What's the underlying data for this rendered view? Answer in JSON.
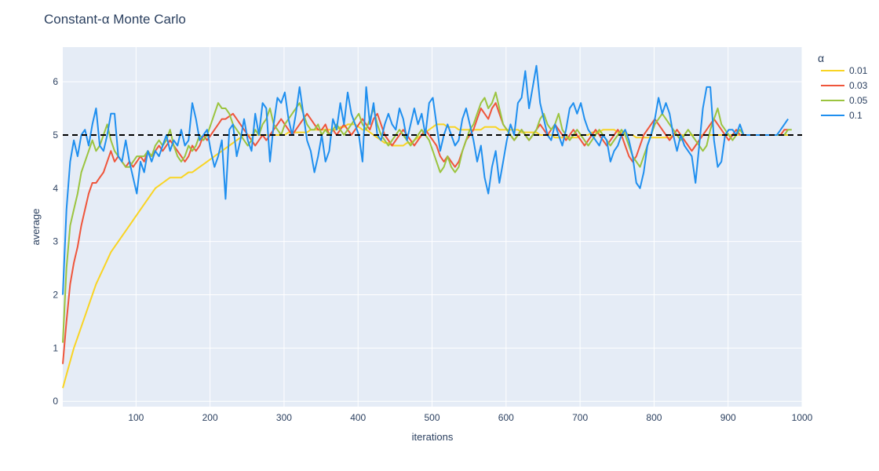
{
  "chart_data": {
    "type": "line",
    "title": "Constant-α Monte Carlo",
    "xlabel": "iterations",
    "ylabel": "average",
    "xlim": [
      1,
      1000
    ],
    "ylim": [
      -0.1,
      6.65
    ],
    "xticks": [
      100,
      200,
      300,
      400,
      500,
      600,
      700,
      800,
      900,
      1000
    ],
    "yticks": [
      0,
      1,
      2,
      3,
      4,
      5,
      6
    ],
    "grid": true,
    "legend": {
      "title": "α",
      "placement": "right"
    },
    "reference_line": {
      "y": 5,
      "style": "dashed",
      "color": "#000000"
    },
    "x_step": 5,
    "series": [
      {
        "name": "0.01",
        "color": "#f9d423",
        "values": [
          0.25,
          0.5,
          0.75,
          1.0,
          1.2,
          1.4,
          1.6,
          1.8,
          2.0,
          2.2,
          2.35,
          2.5,
          2.65,
          2.8,
          2.9,
          3.0,
          3.1,
          3.2,
          3.3,
          3.4,
          3.5,
          3.6,
          3.7,
          3.8,
          3.9,
          4.0,
          4.05,
          4.1,
          4.15,
          4.2,
          4.2,
          4.2,
          4.2,
          4.25,
          4.3,
          4.3,
          4.35,
          4.4,
          4.45,
          4.5,
          4.55,
          4.6,
          4.65,
          4.7,
          4.75,
          4.8,
          4.85,
          4.9,
          4.95,
          5.0,
          5.0,
          5.0,
          5.0,
          5.0,
          5.0,
          5.0,
          5.0,
          5.0,
          5.0,
          5.0,
          5.0,
          5.05,
          5.05,
          5.05,
          5.05,
          5.05,
          5.05,
          5.1,
          5.1,
          5.1,
          5.1,
          5.1,
          5.1,
          5.1,
          5.1,
          5.15,
          5.15,
          5.2,
          5.2,
          5.2,
          5.15,
          5.1,
          5.1,
          5.05,
          5.0,
          4.95,
          4.9,
          4.85,
          4.85,
          4.8,
          4.8,
          4.8,
          4.8,
          4.85,
          4.85,
          4.9,
          4.95,
          5.0,
          5.05,
          5.1,
          5.15,
          5.2,
          5.2,
          5.2,
          5.15,
          5.15,
          5.15,
          5.1,
          5.1,
          5.1,
          5.1,
          5.1,
          5.1,
          5.1,
          5.15,
          5.15,
          5.15,
          5.15,
          5.1,
          5.1,
          5.1,
          5.1,
          5.1,
          5.1,
          5.05,
          5.05,
          5.05,
          5.05,
          5.05,
          5.0,
          5.0,
          5.0,
          5.0,
          4.95,
          4.95,
          4.95,
          4.95,
          4.95,
          4.95,
          4.95,
          5.0,
          5.0,
          5.0,
          5.05,
          5.05,
          5.05,
          5.1,
          5.1,
          5.1,
          5.1,
          5.05,
          5.05,
          5.05,
          5.0,
          5.0,
          4.95,
          4.95,
          4.95,
          4.95,
          4.95,
          4.95,
          4.95,
          4.95,
          4.95,
          4.95,
          5.0,
          5.0,
          5.0,
          5.0,
          5.0,
          5.0,
          5.0,
          5.0,
          5.0,
          5.0,
          5.0,
          5.0,
          5.0,
          5.0,
          5.0,
          5.0,
          5.0,
          5.0,
          5.0,
          5.0,
          5.0,
          5.0,
          5.0,
          5.0,
          5.0,
          5.0,
          5.0,
          5.0,
          5.0,
          5.0,
          5.0,
          5.0,
          5.0
        ]
      },
      {
        "name": "0.03",
        "color": "#ef553b",
        "values": [
          0.7,
          1.5,
          2.2,
          2.6,
          2.9,
          3.3,
          3.6,
          3.9,
          4.1,
          4.1,
          4.2,
          4.3,
          4.5,
          4.7,
          4.5,
          4.6,
          4.5,
          4.4,
          4.5,
          4.4,
          4.5,
          4.6,
          4.5,
          4.7,
          4.6,
          4.7,
          4.8,
          4.7,
          4.8,
          4.9,
          4.8,
          4.7,
          4.6,
          4.5,
          4.6,
          4.8,
          4.7,
          4.8,
          5.0,
          4.9,
          5.0,
          5.1,
          5.2,
          5.3,
          5.3,
          5.35,
          5.4,
          5.3,
          5.2,
          5.1,
          5.0,
          4.9,
          4.8,
          4.9,
          5.0,
          4.9,
          5.0,
          5.1,
          5.2,
          5.3,
          5.2,
          5.1,
          5.0,
          5.1,
          5.2,
          5.3,
          5.4,
          5.3,
          5.2,
          5.1,
          5.1,
          5.2,
          5.0,
          5.1,
          5.0,
          5.1,
          5.2,
          5.1,
          5.0,
          5.1,
          5.2,
          5.3,
          5.2,
          5.1,
          5.3,
          5.4,
          5.2,
          5.0,
          4.9,
          4.8,
          4.9,
          5.0,
          5.1,
          5.0,
          4.9,
          4.8,
          4.9,
          5.0,
          5.1,
          5.0,
          4.9,
          4.8,
          4.6,
          4.5,
          4.6,
          4.5,
          4.4,
          4.5,
          4.7,
          4.9,
          5.0,
          5.1,
          5.3,
          5.5,
          5.4,
          5.3,
          5.5,
          5.6,
          5.4,
          5.2,
          5.1,
          5.0,
          4.9,
          5.0,
          5.1,
          5.0,
          4.9,
          5.0,
          5.1,
          5.2,
          5.1,
          5.0,
          5.1,
          5.2,
          5.1,
          5.0,
          4.9,
          5.0,
          5.1,
          5.0,
          4.9,
          4.8,
          4.9,
          5.0,
          5.1,
          5.0,
          4.9,
          4.8,
          4.9,
          5.0,
          5.1,
          5.0,
          4.8,
          4.6,
          4.5,
          4.6,
          4.8,
          5.0,
          5.1,
          5.2,
          5.3,
          5.2,
          5.1,
          5.0,
          4.9,
          5.0,
          5.1,
          5.0,
          4.9,
          4.8,
          4.7,
          4.8,
          4.9,
          5.0,
          5.1,
          5.2,
          5.3,
          5.2,
          5.1,
          5.0,
          4.9,
          5.0,
          5.1,
          5.0,
          5.0,
          5.0,
          5.0,
          5.0,
          5.0,
          5.0,
          5.0,
          5.0,
          5.0,
          5.0,
          5.0,
          5.1,
          5.1
        ]
      },
      {
        "name": "0.05",
        "color": "#9bc43f",
        "values": [
          1.1,
          2.5,
          3.3,
          3.6,
          3.9,
          4.3,
          4.5,
          4.7,
          4.9,
          4.7,
          4.8,
          5.0,
          5.2,
          4.9,
          4.7,
          4.6,
          4.5,
          4.4,
          4.4,
          4.5,
          4.6,
          4.6,
          4.6,
          4.7,
          4.6,
          4.8,
          4.9,
          4.8,
          4.9,
          5.1,
          4.8,
          4.6,
          4.5,
          4.6,
          4.8,
          4.7,
          4.8,
          5.0,
          4.9,
          5.0,
          5.2,
          5.4,
          5.6,
          5.5,
          5.5,
          5.4,
          5.2,
          5.1,
          5.0,
          4.9,
          4.8,
          4.9,
          5.1,
          5.0,
          5.2,
          5.3,
          5.5,
          5.2,
          5.1,
          5.0,
          5.2,
          5.3,
          5.4,
          5.5,
          5.6,
          5.4,
          5.2,
          5.1,
          5.1,
          5.2,
          5.0,
          5.1,
          5.0,
          5.1,
          5.2,
          5.1,
          5.0,
          5.1,
          5.2,
          5.3,
          5.4,
          5.2,
          5.1,
          5.3,
          5.5,
          5.2,
          5.0,
          4.9,
          4.8,
          4.9,
          5.0,
          5.1,
          5.0,
          4.9,
          4.8,
          4.9,
          5.0,
          5.1,
          5.0,
          4.9,
          4.7,
          4.5,
          4.3,
          4.4,
          4.6,
          4.4,
          4.3,
          4.4,
          4.7,
          4.9,
          5.1,
          5.2,
          5.4,
          5.6,
          5.7,
          5.5,
          5.6,
          5.8,
          5.5,
          5.2,
          5.1,
          5.0,
          4.9,
          5.0,
          5.1,
          5.0,
          4.9,
          5.0,
          5.1,
          5.3,
          5.4,
          5.2,
          5.1,
          5.2,
          5.4,
          5.1,
          5.0,
          4.9,
          5.0,
          5.1,
          5.0,
          4.9,
          4.8,
          4.9,
          5.0,
          5.1,
          5.0,
          4.9,
          4.8,
          4.9,
          5.0,
          5.1,
          5.0,
          4.8,
          4.6,
          4.5,
          4.4,
          4.6,
          4.8,
          5.0,
          5.2,
          5.3,
          5.4,
          5.3,
          5.2,
          5.1,
          5.0,
          4.9,
          5.0,
          5.1,
          5.0,
          4.9,
          4.8,
          4.7,
          4.8,
          5.1,
          5.3,
          5.5,
          5.2,
          5.1,
          5.0,
          4.9,
          5.0,
          5.1,
          5.0,
          5.0,
          5.0,
          5.0,
          5.0,
          5.0,
          5.0,
          5.0,
          5.0,
          5.0,
          5.0,
          5.0,
          5.1,
          5.1
        ]
      },
      {
        "name": "0.1",
        "color": "#1f8fef",
        "values": [
          2.0,
          3.6,
          4.5,
          4.9,
          4.6,
          5.0,
          5.1,
          4.8,
          5.2,
          5.5,
          4.8,
          4.7,
          5.0,
          5.4,
          5.4,
          4.6,
          4.5,
          4.9,
          4.5,
          4.2,
          3.9,
          4.5,
          4.3,
          4.7,
          4.5,
          4.7,
          4.6,
          4.8,
          5.0,
          4.7,
          4.9,
          4.8,
          5.1,
          4.8,
          4.9,
          5.6,
          5.3,
          4.9,
          5.0,
          5.1,
          4.7,
          4.4,
          4.6,
          4.9,
          3.8,
          5.1,
          5.2,
          4.6,
          4.9,
          5.3,
          4.9,
          4.7,
          5.4,
          5.0,
          5.6,
          5.5,
          4.5,
          5.2,
          5.7,
          5.6,
          5.8,
          5.3,
          5.0,
          5.4,
          5.9,
          5.4,
          4.9,
          4.7,
          4.3,
          4.6,
          5.0,
          4.5,
          4.7,
          5.3,
          5.1,
          5.6,
          5.2,
          5.8,
          5.4,
          5.2,
          5.0,
          4.5,
          5.9,
          5.2,
          5.6,
          5.0,
          4.9,
          5.2,
          5.4,
          5.2,
          5.1,
          5.5,
          5.3,
          4.9,
          5.2,
          5.5,
          5.2,
          5.4,
          5.0,
          5.6,
          5.7,
          5.2,
          4.7,
          5.0,
          5.2,
          5.0,
          4.8,
          4.9,
          5.3,
          5.5,
          5.2,
          4.9,
          4.5,
          4.8,
          4.2,
          3.9,
          4.4,
          4.7,
          4.1,
          4.5,
          4.9,
          5.2,
          5.0,
          5.6,
          5.7,
          6.2,
          5.5,
          5.9,
          6.3,
          5.6,
          5.3,
          5.0,
          4.9,
          5.2,
          5.0,
          4.8,
          5.1,
          5.5,
          5.6,
          5.4,
          5.6,
          5.3,
          5.1,
          5.0,
          4.9,
          4.8,
          5.0,
          4.9,
          4.5,
          4.7,
          4.8,
          5.0,
          5.1,
          4.9,
          4.6,
          4.1,
          4.0,
          4.3,
          4.8,
          5.0,
          5.3,
          5.7,
          5.4,
          5.6,
          5.4,
          5.0,
          4.7,
          5.0,
          4.8,
          4.7,
          4.6,
          4.1,
          4.8,
          5.5,
          5.9,
          5.9,
          4.9,
          4.4,
          4.5,
          5.0,
          5.1,
          5.1,
          5.0,
          5.2,
          5.0,
          5.0,
          5.0,
          5.0,
          5.0,
          5.0,
          5.0,
          5.0,
          5.0,
          5.0,
          5.1,
          5.2,
          5.3
        ]
      }
    ]
  }
}
